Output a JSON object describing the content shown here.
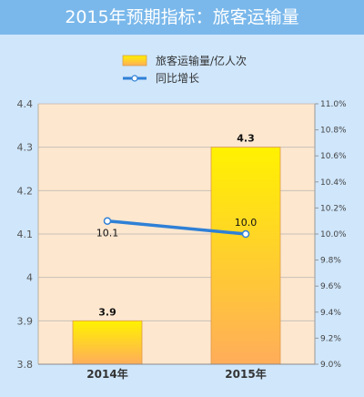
{
  "title": "2015年预期指标：旅客运输量",
  "colors": {
    "title_bg": "#7ab8eb",
    "page_bg": "#cfe6fb",
    "plot_bg": "#fde7cf",
    "bar_top": "#fff200",
    "bar_bottom": "#ffad5a",
    "line": "#2f80d6"
  },
  "chart_data": {
    "type": "bar",
    "title": "2015年预期指标：旅客运输量",
    "categories": [
      "2014年",
      "2015年"
    ],
    "series": [
      {
        "name": "旅客运输量/亿人次",
        "type": "bar",
        "axis": "left",
        "values": [
          3.9,
          4.3
        ],
        "value_labels": [
          "3.9",
          "4.3"
        ]
      },
      {
        "name": "同比增长",
        "type": "line",
        "axis": "right",
        "values": [
          10.1,
          10.0
        ],
        "value_labels": [
          "10.1",
          "10.0"
        ]
      }
    ],
    "y_left": {
      "ylim": [
        3.8,
        4.4
      ],
      "ticks": [
        3.8,
        3.9,
        4.0,
        4.1,
        4.2,
        4.3,
        4.4
      ],
      "tick_labels": [
        "3.8",
        "3.9",
        "4",
        "4.1",
        "4.2",
        "4.3",
        "4.4"
      ]
    },
    "y_right": {
      "ylim": [
        9.0,
        11.0
      ],
      "ticks": [
        9.0,
        9.2,
        9.4,
        9.6,
        9.8,
        10.0,
        10.2,
        10.4,
        10.6,
        10.8,
        11.0
      ],
      "tick_labels": [
        "9.0%",
        "9.2%",
        "9.4%",
        "9.6%",
        "9.8%",
        "10.0%",
        "10.2%",
        "10.4%",
        "10.6%",
        "10.8%",
        "11.0%"
      ]
    },
    "grid": true,
    "legend_position": "top-center"
  }
}
